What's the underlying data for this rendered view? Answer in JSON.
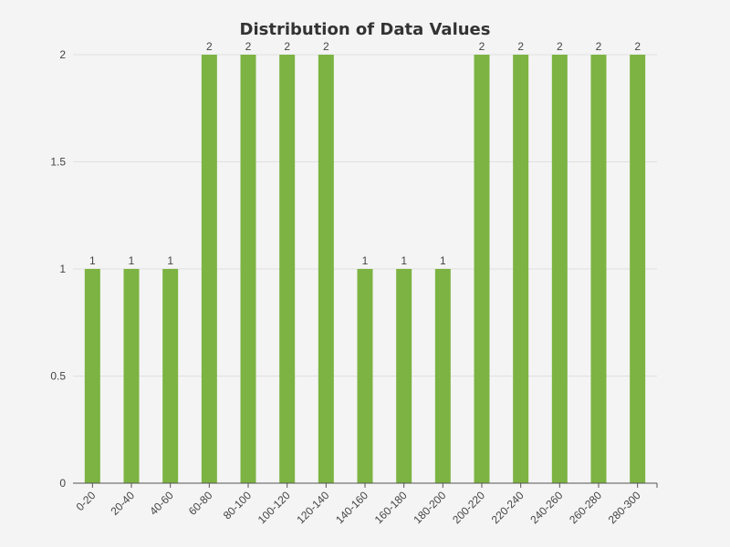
{
  "chart_data": {
    "type": "bar",
    "title": "Distribution of Data Values",
    "xlabel": "",
    "ylabel": "",
    "categories": [
      "0-20",
      "20-40",
      "40-60",
      "60-80",
      "80-100",
      "100-120",
      "120-140",
      "140-160",
      "160-180",
      "180-200",
      "200-220",
      "220-240",
      "240-260",
      "260-280",
      "280-300"
    ],
    "values": [
      1,
      1,
      1,
      2,
      2,
      2,
      2,
      1,
      1,
      1,
      2,
      2,
      2,
      2,
      2
    ],
    "ylim": [
      0,
      2
    ],
    "yticks": [
      "0",
      "0.5",
      "1",
      "1.5",
      "2"
    ],
    "grid": true,
    "colors": {
      "bar": "#7cb342"
    }
  }
}
